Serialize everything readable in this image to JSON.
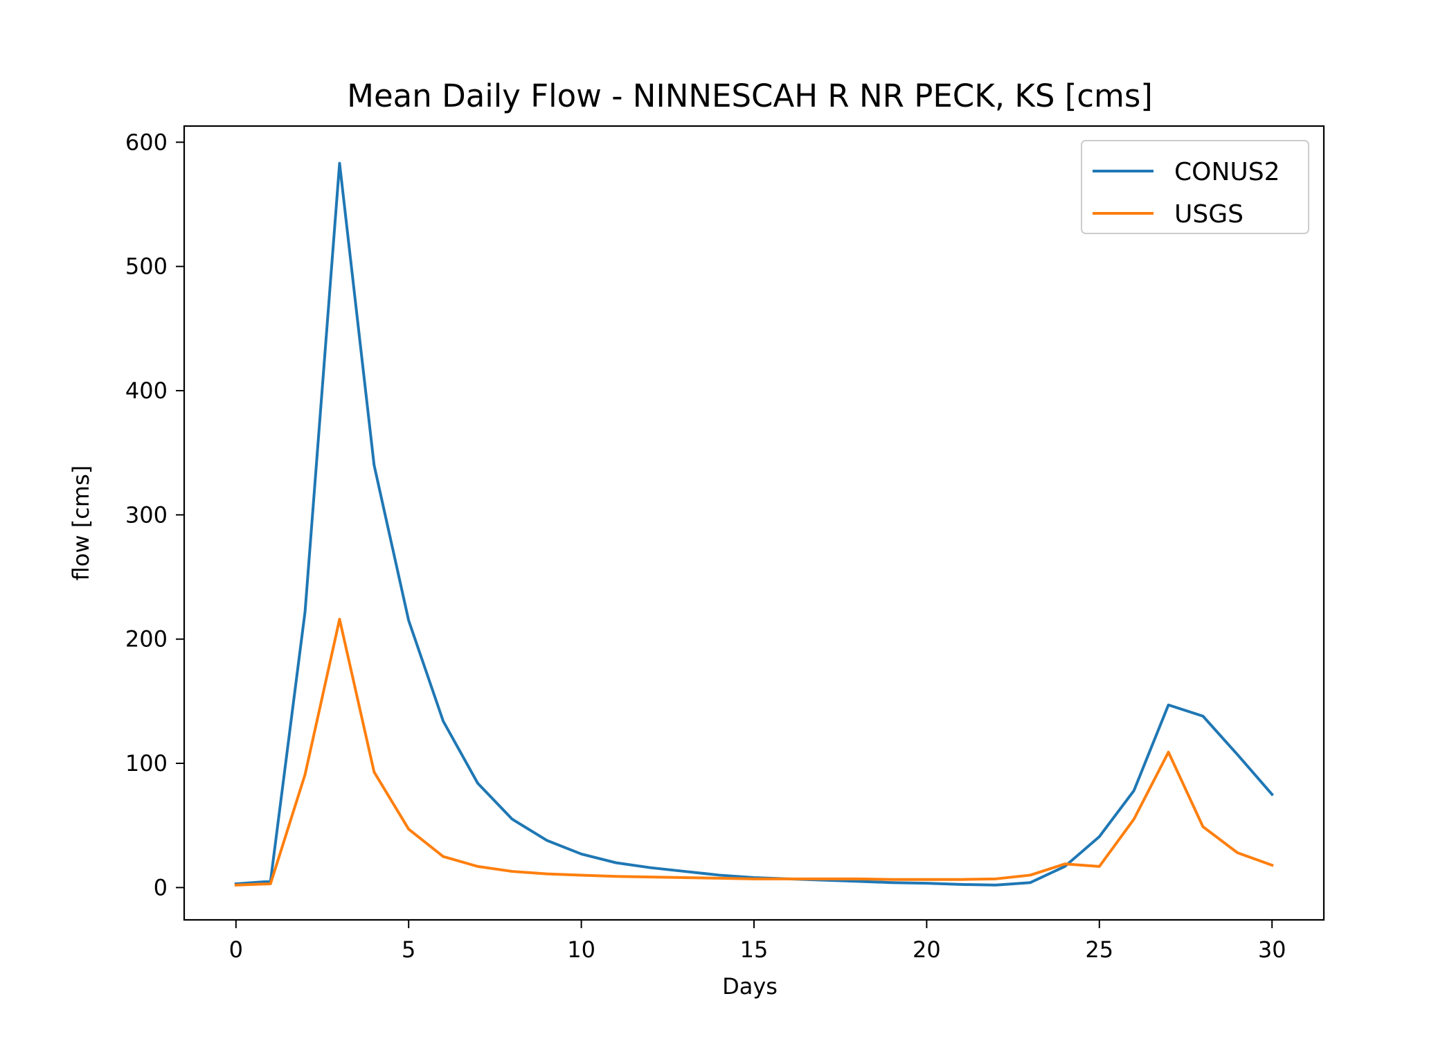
{
  "chart_data": {
    "type": "line",
    "title": "Mean Daily Flow - NINNESCAH R NR PECK, KS [cms]",
    "xlabel": "Days",
    "ylabel": "flow [cms]",
    "xlim": [
      -1.5,
      31.5
    ],
    "ylim": [
      -26,
      613
    ],
    "xticks": [
      0,
      5,
      10,
      15,
      20,
      25,
      30
    ],
    "yticks": [
      0,
      100,
      200,
      300,
      400,
      500,
      600
    ],
    "grid": false,
    "legend_position": "top-right",
    "x": [
      0,
      1,
      2,
      3,
      4,
      5,
      6,
      7,
      8,
      9,
      10,
      11,
      12,
      13,
      14,
      15,
      16,
      17,
      18,
      19,
      20,
      21,
      22,
      23,
      24,
      25,
      26,
      27,
      28,
      29,
      30
    ],
    "series": [
      {
        "name": "CONUS2",
        "color": "#1f77b4",
        "values": [
          3,
          5,
          222,
          583,
          340,
          215,
          134,
          84,
          55,
          38,
          27,
          20,
          16,
          13,
          10,
          8,
          7,
          6,
          5,
          4,
          3.5,
          2.5,
          2,
          4,
          17,
          41,
          78,
          147,
          138,
          107,
          75
        ]
      },
      {
        "name": "USGS",
        "color": "#ff7f0e",
        "values": [
          2,
          3,
          91,
          216,
          93,
          47,
          25,
          17,
          13,
          11,
          10,
          9,
          8.5,
          8,
          7.5,
          7,
          7,
          7,
          7,
          6.5,
          6.5,
          6.5,
          7,
          10,
          19,
          17,
          55,
          109,
          49,
          28,
          18
        ]
      }
    ]
  }
}
